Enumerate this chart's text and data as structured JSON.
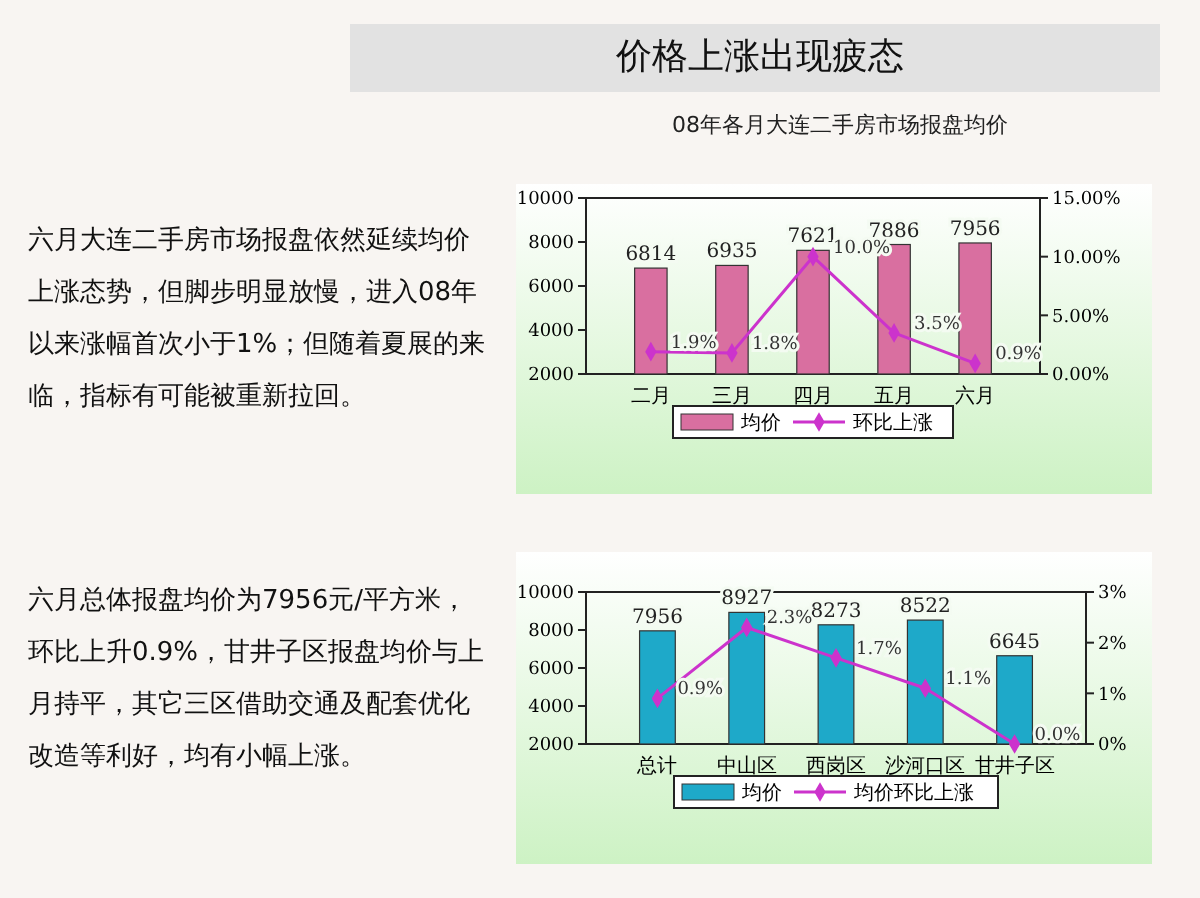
{
  "chart_data": [
    {
      "type": "bar",
      "title": "价格上涨出现疲态",
      "subtitle": "08年各月大连二手房市场报盘均价",
      "annotations": [
        "六月大连二手房市场报盘依然延续均价上涨态势，但脚步明显放慢，进入08年以来涨幅首次小于1%；但随着夏展的来临，指标有可能被重新拉回。"
      ],
      "categories": [
        "二月",
        "三月",
        "四月",
        "五月",
        "六月"
      ],
      "ylim": [
        2000,
        10000
      ],
      "yticks": [
        2000,
        4000,
        6000,
        8000,
        10000
      ],
      "y2lim": [
        0,
        15
      ],
      "y2ticks": [
        {
          "value": 0,
          "label": "0.00%"
        },
        {
          "value": 5,
          "label": "5.00%"
        },
        {
          "value": 10,
          "label": "10.00%"
        },
        {
          "value": 15,
          "label": "15.00%"
        }
      ],
      "legend": "bottom",
      "marker": "diamond",
      "series": [
        {
          "name": "均价",
          "color": "#d96fa0",
          "values": [
            6814,
            6935,
            7621,
            7886,
            7956
          ],
          "value_labels": [
            "6814",
            "6935",
            "7621",
            "7886",
            "7956"
          ]
        },
        {
          "name": "环比上涨",
          "type": "line",
          "axis": "y2",
          "color": "#cc33cc",
          "values": [
            1.9,
            1.8,
            10.0,
            3.5,
            0.9
          ],
          "value_labels": [
            "1.9%",
            "1.8%",
            "10.0%",
            "3.5%",
            "0.9%"
          ]
        }
      ]
    },
    {
      "type": "bar",
      "annotations": [
        "六月总体报盘均价为7956元/平方米，环比上升0.9%，甘井子区报盘均价与上月持平，其它三区借助交通及配套优化改造等利好，均有小幅上涨。"
      ],
      "categories": [
        "总计",
        "中山区",
        "西岗区",
        "沙河口区",
        "甘井子区"
      ],
      "ylim": [
        2000,
        10000
      ],
      "yticks": [
        2000,
        4000,
        6000,
        8000,
        10000
      ],
      "y2lim": [
        0,
        3
      ],
      "y2ticks": [
        {
          "value": 0,
          "label": "0%"
        },
        {
          "value": 1,
          "label": "1%"
        },
        {
          "value": 2,
          "label": "2%"
        },
        {
          "value": 3,
          "label": "3%"
        }
      ],
      "legend": "bottom",
      "marker": "diamond",
      "series": [
        {
          "name": "均价",
          "color": "#1ea9c9",
          "values": [
            7956,
            8927,
            8273,
            8522,
            6645
          ],
          "value_labels": [
            "7956",
            "8927",
            "8273",
            "8522",
            "6645"
          ]
        },
        {
          "name": "均价环比上涨",
          "type": "line",
          "axis": "y2",
          "color": "#cc33cc",
          "values": [
            0.9,
            2.3,
            1.7,
            1.1,
            0.0
          ],
          "value_labels": [
            "0.9%",
            "2.3%",
            "1.7%",
            "1.1%",
            "0.0%"
          ]
        }
      ]
    }
  ]
}
